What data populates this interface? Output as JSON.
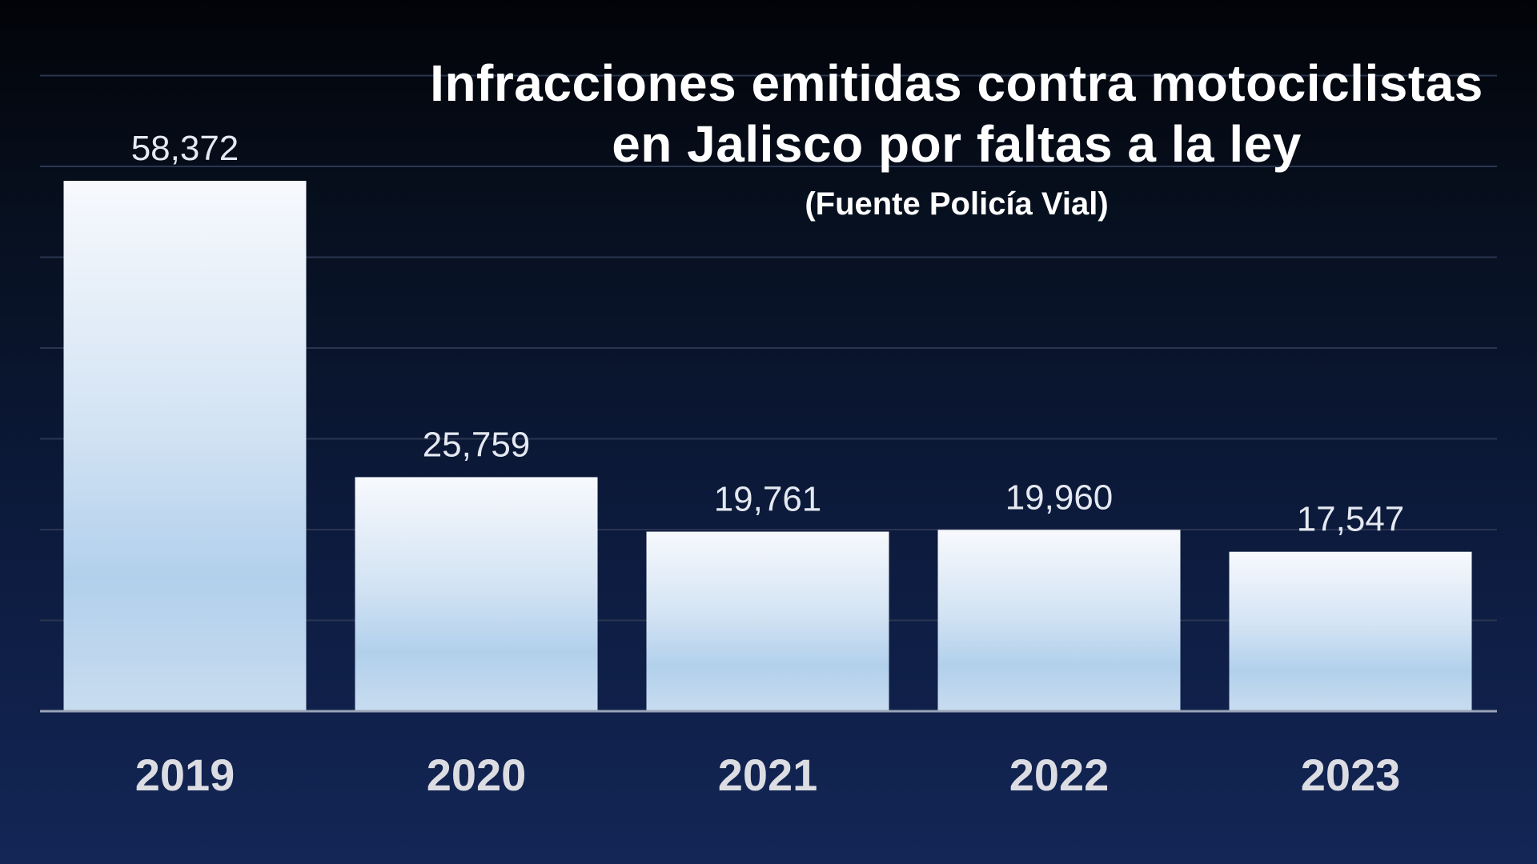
{
  "chart_data": {
    "type": "bar",
    "title_lines": [
      "Infracciones emitidas contra motociclistas",
      "en Jalisco por faltas a la ley"
    ],
    "subtitle": "(Fuente Policía Vial)",
    "categories": [
      "2019",
      "2020",
      "2021",
      "2022",
      "2023"
    ],
    "values": [
      58372,
      25759,
      19761,
      19960,
      17547
    ],
    "value_labels": [
      "58,372",
      "25,759",
      "19,761",
      "19,960",
      "17,547"
    ],
    "xlabel": "",
    "ylabel": "",
    "ylim": [
      0,
      70000
    ],
    "grid": true,
    "legend": "none",
    "colors": {
      "bar_top": "#f7f9fd",
      "bar_bottom": "#b2d0ec",
      "gridline": "#2a3550",
      "baseline": "#9aa4b8"
    }
  }
}
